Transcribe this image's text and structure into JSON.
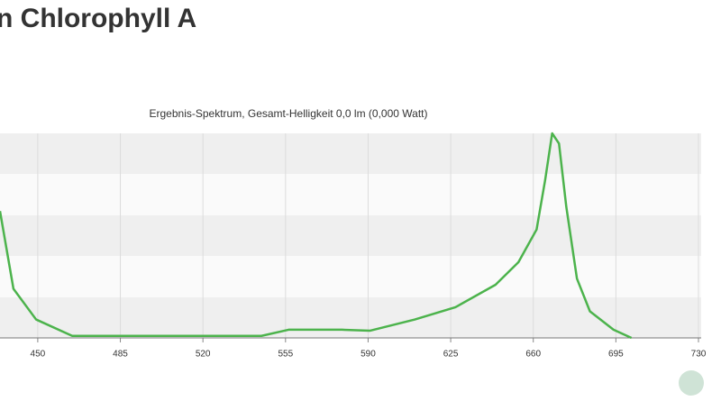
{
  "chart_data": {
    "type": "line",
    "title": "n Chlorophyll A",
    "subtitle": "Ergebnis-Spektrum, Gesamt-Helligkeit 0,0 lm (0,000 Watt)",
    "x": [
      434,
      439.7,
      449.3,
      464.6,
      544.8,
      556.3,
      579,
      590.7,
      609.8,
      627,
      644,
      653.7,
      661.4,
      665,
      668,
      670.9,
      674,
      678.5,
      684,
      694,
      701.6
    ],
    "series": [
      {
        "color": "#4cb34c",
        "values": [
          62,
          24,
          9,
          1,
          1,
          4,
          4,
          3.5,
          9,
          15,
          26,
          37,
          53,
          77,
          100,
          95,
          64,
          29,
          13,
          4,
          0
        ]
      }
    ],
    "xlim": [
      434,
      730
    ],
    "xticks": [
      450,
      485,
      520,
      555,
      590,
      625,
      660,
      695,
      730
    ],
    "ylim": [
      0,
      100
    ],
    "grid": true
  }
}
